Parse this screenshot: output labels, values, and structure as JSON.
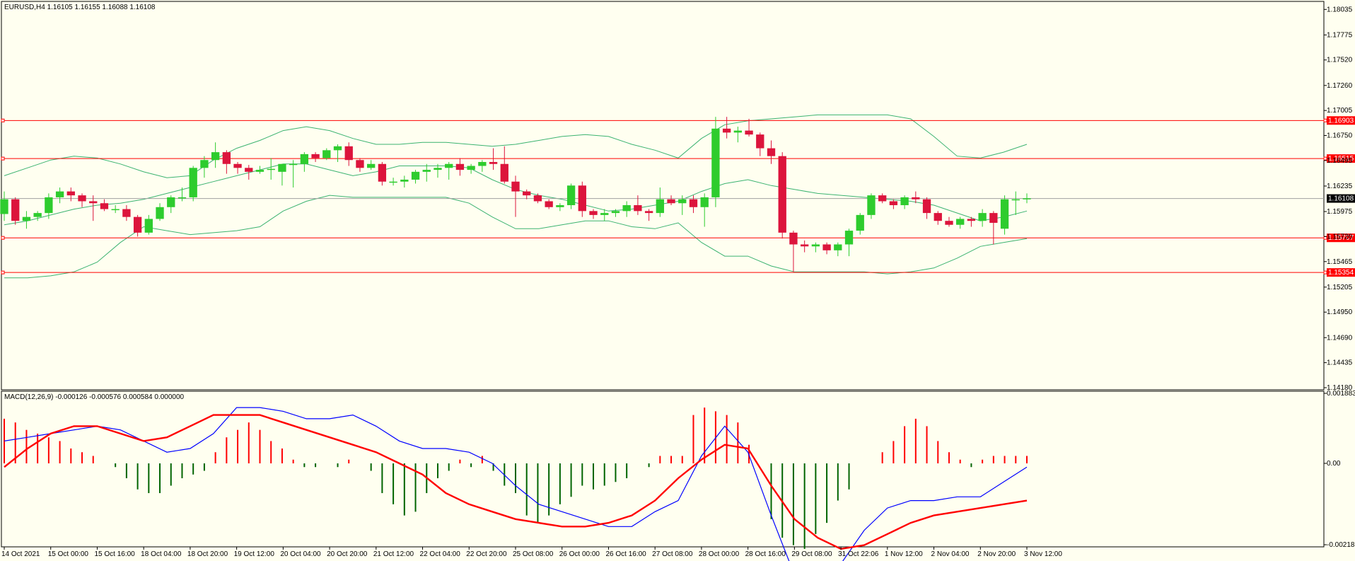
{
  "window": {
    "symbol_title": "EURUSD,H4  1.16105 1.16155 1.16088 1.16108",
    "macd_title": "MACD(12,26,9) -0.000126 -0.000576 0.000584 0.000000"
  },
  "colors": {
    "background": "#fffff0",
    "bull": "#2ecc2e",
    "bear": "#dc143c",
    "bands": "#3cb371",
    "level": "#ff0000",
    "current_line": "#a0a0a0",
    "current_tag": "#000000",
    "macd_pos": "#ff0000",
    "macd_neg": "#006400",
    "macd_main": "#0000ff",
    "macd_signal": "#ff0000"
  },
  "chart_data": [
    {
      "type": "candlestick",
      "name": "EURUSD,H4",
      "ylim": [
        1.1418,
        1.1803
      ],
      "y_ticks": [
        "1.18035",
        "1.17775",
        "1.17520",
        "1.17260",
        "1.17005",
        "1.16750",
        "1.16495",
        "1.16235",
        "1.15975",
        "1.15720",
        "1.15465",
        "1.15205",
        "1.14950",
        "1.14690",
        "1.14435",
        "1.14180"
      ],
      "x_ticks": [
        "14 Oct 2021",
        "15 Oct 00:00",
        "15 Oct 16:00",
        "18 Oct 04:00",
        "18 Oct 20:00",
        "19 Oct 12:00",
        "20 Oct 04:00",
        "20 Oct 20:00",
        "21 Oct 12:00",
        "22 Oct 04:00",
        "22 Oct 20:00",
        "25 Oct 08:00",
        "26 Oct 00:00",
        "26 Oct 16:00",
        "27 Oct 08:00",
        "28 Oct 00:00",
        "28 Oct 16:00",
        "29 Oct 08:00",
        "31 Oct 22:06",
        "1 Nov 12:00",
        "2 Nov 04:00",
        "2 Nov 20:00",
        "3 Nov 12:00"
      ],
      "ohlc": [
        [
          1.1595,
          1.1618,
          1.1588,
          1.161
        ],
        [
          1.161,
          1.1612,
          1.1584,
          1.1588
        ],
        [
          1.1588,
          1.1598,
          1.158,
          1.1592
        ],
        [
          1.1592,
          1.1598,
          1.1588,
          1.1596
        ],
        [
          1.1596,
          1.1616,
          1.159,
          1.1612
        ],
        [
          1.1612,
          1.1622,
          1.1606,
          1.1618
        ],
        [
          1.1618,
          1.1622,
          1.1608,
          1.1614
        ],
        [
          1.1614,
          1.1616,
          1.1602,
          1.1608
        ],
        [
          1.1608,
          1.1614,
          1.1588,
          1.1606
        ],
        [
          1.1606,
          1.161,
          1.1598,
          1.16
        ],
        [
          1.16,
          1.1604,
          1.1596,
          1.16
        ],
        [
          1.16,
          1.1604,
          1.1588,
          1.1592
        ],
        [
          1.1592,
          1.1594,
          1.1572,
          1.1576
        ],
        [
          1.1576,
          1.1594,
          1.1574,
          1.159
        ],
        [
          1.159,
          1.1606,
          1.1588,
          1.1602
        ],
        [
          1.1602,
          1.1614,
          1.1596,
          1.1612
        ],
        [
          1.1612,
          1.1622,
          1.1608,
          1.1612
        ],
        [
          1.1612,
          1.1644,
          1.1608,
          1.1642
        ],
        [
          1.1642,
          1.1654,
          1.1632,
          1.165
        ],
        [
          1.165,
          1.1668,
          1.1642,
          1.1658
        ],
        [
          1.1658,
          1.166,
          1.1636,
          1.1646
        ],
        [
          1.1646,
          1.1648,
          1.1636,
          1.1642
        ],
        [
          1.1642,
          1.1645,
          1.163,
          1.1638
        ],
        [
          1.1638,
          1.1644,
          1.1636,
          1.164
        ],
        [
          1.164,
          1.1652,
          1.163,
          1.1641
        ],
        [
          1.1638,
          1.1646,
          1.1624,
          1.1646
        ],
        [
          1.1646,
          1.165,
          1.1622,
          1.1646
        ],
        [
          1.1646,
          1.1658,
          1.1638,
          1.1656
        ],
        [
          1.1656,
          1.1658,
          1.1648,
          1.1652
        ],
        [
          1.1652,
          1.1662,
          1.165,
          1.166
        ],
        [
          1.166,
          1.1666,
          1.1648,
          1.1664
        ],
        [
          1.1664,
          1.1668,
          1.1644,
          1.165
        ],
        [
          1.165,
          1.1652,
          1.1638,
          1.1642
        ],
        [
          1.1642,
          1.165,
          1.164,
          1.1646
        ],
        [
          1.1646,
          1.1648,
          1.1624,
          1.1628
        ],
        [
          1.1628,
          1.1632,
          1.1624,
          1.1628
        ],
        [
          1.1628,
          1.1634,
          1.1622,
          1.163
        ],
        [
          1.163,
          1.164,
          1.1626,
          1.1638
        ],
        [
          1.1638,
          1.1646,
          1.1628,
          1.164
        ],
        [
          1.164,
          1.1646,
          1.1632,
          1.1642
        ],
        [
          1.1642,
          1.1648,
          1.163,
          1.1646
        ],
        [
          1.1646,
          1.1652,
          1.1634,
          1.164
        ],
        [
          1.164,
          1.1646,
          1.1636,
          1.1644
        ],
        [
          1.1644,
          1.165,
          1.1638,
          1.1648
        ],
        [
          1.1648,
          1.1662,
          1.164,
          1.1646
        ],
        [
          1.1646,
          1.1664,
          1.1626,
          1.1628
        ],
        [
          1.1628,
          1.1634,
          1.1592,
          1.1618
        ],
        [
          1.1618,
          1.162,
          1.161,
          1.1614
        ],
        [
          1.1614,
          1.1616,
          1.1606,
          1.1608
        ],
        [
          1.1608,
          1.161,
          1.16,
          1.1602
        ],
        [
          1.1602,
          1.1606,
          1.1598,
          1.1604
        ],
        [
          1.1604,
          1.1626,
          1.16,
          1.1624
        ],
        [
          1.1624,
          1.1628,
          1.1592,
          1.1598
        ],
        [
          1.1598,
          1.16,
          1.159,
          1.1594
        ],
        [
          1.1594,
          1.16,
          1.1588,
          1.1596
        ],
        [
          1.1596,
          1.16,
          1.1592,
          1.1598
        ],
        [
          1.1598,
          1.1608,
          1.1592,
          1.1604
        ],
        [
          1.1604,
          1.1614,
          1.1594,
          1.1598
        ],
        [
          1.1598,
          1.16,
          1.1588,
          1.1596
        ],
        [
          1.1596,
          1.1622,
          1.1592,
          1.161
        ],
        [
          1.161,
          1.1614,
          1.1604,
          1.1606
        ],
        [
          1.1606,
          1.1614,
          1.1594,
          1.161
        ],
        [
          1.161,
          1.1614,
          1.1596,
          1.1602
        ],
        [
          1.1602,
          1.1616,
          1.1582,
          1.1612
        ],
        [
          1.1612,
          1.1694,
          1.1602,
          1.1682
        ],
        [
          1.1682,
          1.1694,
          1.1672,
          1.1678
        ],
        [
          1.1678,
          1.1684,
          1.1668,
          1.168
        ],
        [
          1.168,
          1.1692,
          1.1674,
          1.1676
        ],
        [
          1.1676,
          1.1678,
          1.1654,
          1.1662
        ],
        [
          1.1662,
          1.167,
          1.1646,
          1.1654
        ],
        [
          1.1654,
          1.1658,
          1.157,
          1.1576
        ],
        [
          1.1576,
          1.1578,
          1.1536,
          1.1564
        ],
        [
          1.1564,
          1.1568,
          1.1556,
          1.1562
        ],
        [
          1.1562,
          1.1566,
          1.1556,
          1.1564
        ],
        [
          1.1564,
          1.1566,
          1.1554,
          1.1558
        ],
        [
          1.1558,
          1.1566,
          1.1552,
          1.1564
        ],
        [
          1.1564,
          1.158,
          1.1552,
          1.1578
        ],
        [
          1.1578,
          1.1596,
          1.1574,
          1.1594
        ],
        [
          1.1594,
          1.1616,
          1.159,
          1.1614
        ],
        [
          1.1614,
          1.1616,
          1.1606,
          1.1608
        ],
        [
          1.1608,
          1.161,
          1.16,
          1.1604
        ],
        [
          1.1604,
          1.1614,
          1.16,
          1.1612
        ],
        [
          1.1612,
          1.1618,
          1.1606,
          1.161
        ],
        [
          1.161,
          1.1612,
          1.159,
          1.1596
        ],
        [
          1.1596,
          1.1598,
          1.1584,
          1.1588
        ],
        [
          1.1588,
          1.1592,
          1.1582,
          1.1584
        ],
        [
          1.1584,
          1.1592,
          1.158,
          1.159
        ],
        [
          1.159,
          1.1592,
          1.1582,
          1.1588
        ],
        [
          1.1588,
          1.16,
          1.1582,
          1.1596
        ],
        [
          1.1596,
          1.1598,
          1.1564,
          1.1586
        ],
        [
          1.158,
          1.1614,
          1.1574,
          1.161
        ],
        [
          1.161,
          1.1618,
          1.1594,
          1.161
        ],
        [
          1.161,
          1.1616,
          1.1606,
          1.1611
        ]
      ],
      "bollinger": {
        "upper": [
          1.1634,
          1.1642,
          1.165,
          1.1654,
          1.1652,
          1.1646,
          1.1638,
          1.1632,
          1.1634,
          1.165,
          1.1662,
          1.167,
          1.168,
          1.1684,
          1.168,
          1.1672,
          1.1666,
          1.1666,
          1.1668,
          1.1668,
          1.1666,
          1.1664,
          1.1666,
          1.167,
          1.1674,
          1.1676,
          1.1674,
          1.1666,
          1.166,
          1.1652,
          1.1672,
          1.1686,
          1.169,
          1.1692,
          1.1694,
          1.1696,
          1.1696,
          1.1696,
          1.1696,
          1.1692,
          1.1674,
          1.1654,
          1.1652,
          1.1658,
          1.1666
        ],
        "middle": [
          1.1584,
          1.1588,
          1.1594,
          1.16,
          1.1604,
          1.1606,
          1.161,
          1.1616,
          1.1622,
          1.1628,
          1.1634,
          1.164,
          1.1646,
          1.1646,
          1.164,
          1.1634,
          1.1638,
          1.1644,
          1.1644,
          1.1644,
          1.1642,
          1.163,
          1.162,
          1.1614,
          1.161,
          1.1604,
          1.1598,
          1.16,
          1.1604,
          1.1608,
          1.1618,
          1.1626,
          1.163,
          1.1624,
          1.162,
          1.1616,
          1.1614,
          1.1612,
          1.161,
          1.1608,
          1.1604,
          1.1596,
          1.1588,
          1.1592,
          1.1598
        ],
        "lower": [
          1.153,
          1.153,
          1.1532,
          1.1536,
          1.1546,
          1.1566,
          1.1582,
          1.1578,
          1.1574,
          1.1576,
          1.1578,
          1.1582,
          1.1598,
          1.1608,
          1.1614,
          1.1612,
          1.1612,
          1.1612,
          1.1612,
          1.1612,
          1.1606,
          1.1592,
          1.158,
          1.158,
          1.1584,
          1.1588,
          1.1588,
          1.1582,
          1.158,
          1.1586,
          1.1566,
          1.1552,
          1.1552,
          1.1542,
          1.1536,
          1.1536,
          1.1536,
          1.1536,
          1.1534,
          1.1536,
          1.154,
          1.155,
          1.1562,
          1.1566,
          1.157
        ]
      },
      "horizontal_lines": [
        {
          "value": 1.16903,
          "label": "1.16903"
        },
        {
          "value": 1.16515,
          "label": "1.16515"
        },
        {
          "value": 1.15707,
          "label": "1.15707"
        },
        {
          "value": 1.15354,
          "label": "1.15354"
        }
      ],
      "current_price": {
        "value": 1.16108,
        "label": "1.16108"
      }
    },
    {
      "type": "bar+line",
      "name": "MACD(12,26,9)",
      "ylim": [
        -0.002188,
        0.001883
      ],
      "y_ticks": [
        "0.001883",
        "0.00",
        "-0.002188"
      ],
      "histogram": [
        0.0012,
        0.0011,
        0.0009,
        0.0008,
        0.0007,
        0.0006,
        0.0004,
        0.0003,
        0.0002,
        0.0,
        -0.0001,
        -0.0004,
        -0.0007,
        -0.0008,
        -0.0008,
        -0.0006,
        -0.0004,
        -0.0003,
        -0.0002,
        0.0003,
        0.0007,
        0.0009,
        0.0011,
        0.0009,
        0.0006,
        0.0004,
        0.0001,
        -0.0001,
        -0.0001,
        0.0,
        -0.0001,
        0.0001,
        0.0,
        -0.0002,
        -0.0008,
        -0.0011,
        -0.0014,
        -0.0013,
        -0.0008,
        -0.0004,
        -0.0002,
        0.0001,
        -0.0001,
        0.0002,
        -0.0002,
        -0.0006,
        -0.0008,
        -0.0014,
        -0.0016,
        -0.0014,
        -0.0011,
        -0.0009,
        -0.0006,
        -0.0007,
        -0.0006,
        -0.0005,
        -0.0004,
        0.0,
        -0.0001,
        0.0002,
        0.0002,
        0.0002,
        0.0013,
        0.0015,
        0.0014,
        0.0013,
        0.0011,
        0.0005,
        0.0,
        -0.0015,
        -0.002,
        -0.0022,
        -0.0023,
        -0.0019,
        -0.0016,
        -0.001,
        -0.0007,
        0.0,
        0.0,
        0.0003,
        0.0006,
        0.001,
        0.0012,
        0.001,
        0.0006,
        0.0003,
        0.0001,
        -0.0001,
        0.0001,
        0.0002,
        0.0002,
        0.0002,
        0.0002
      ],
      "main": [
        0.0006,
        0.0007,
        0.0008,
        0.0009,
        0.001,
        0.0009,
        0.0006,
        0.0003,
        0.0004,
        0.0008,
        0.0015,
        0.0015,
        0.0014,
        0.0012,
        0.0012,
        0.0013,
        0.001,
        0.0006,
        0.0004,
        0.0004,
        0.0003,
        0.0,
        -0.0006,
        -0.0011,
        -0.0013,
        -0.0015,
        -0.0017,
        -0.0017,
        -0.0013,
        -0.001,
        0.0002,
        0.001,
        0.0003,
        -0.0014,
        -0.003,
        -0.0029,
        -0.0027,
        -0.0018,
        -0.0012,
        -0.001,
        -0.001,
        -0.0009,
        -0.0009,
        -0.0005,
        -0.0001
      ],
      "signal": [
        -0.0001,
        0.0004,
        0.0008,
        0.001,
        0.001,
        0.0008,
        0.0006,
        0.0007,
        0.001,
        0.0013,
        0.0013,
        0.0013,
        0.0011,
        0.0009,
        0.0007,
        0.0005,
        0.0003,
        0.0,
        -0.0003,
        -0.0008,
        -0.0011,
        -0.0013,
        -0.0015,
        -0.0016,
        -0.0017,
        -0.0017,
        -0.0016,
        -0.0014,
        -0.001,
        -0.0004,
        0.0001,
        0.0005,
        0.0004,
        -0.0006,
        -0.0015,
        -0.002,
        -0.0023,
        -0.0022,
        -0.0019,
        -0.0016,
        -0.0014,
        -0.0013,
        -0.0012,
        -0.0011,
        -0.001
      ]
    }
  ]
}
